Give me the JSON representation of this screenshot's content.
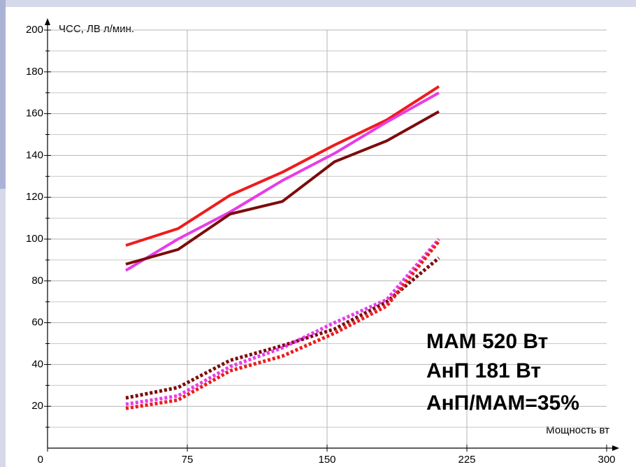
{
  "chart_data": {
    "type": "line",
    "ylabel": "ЧСС, ЛВ л/мин.",
    "xlabel": "Мощность вт",
    "annotations": [
      "МАМ 520 Вт",
      "АнП  181 Вт",
      "АнП/МАМ=35%"
    ],
    "annotation_colors": [
      "#2b2b9c",
      "#2b2b9c",
      "#ee1111"
    ],
    "x": [
      42,
      70,
      98,
      126,
      154,
      182,
      210
    ],
    "series": [
      {
        "color": "#ee1c1c",
        "style": "solid",
        "values": [
          97,
          105,
          121,
          132,
          145,
          157,
          173
        ]
      },
      {
        "color": "#e83ce8",
        "style": "solid",
        "values": [
          85,
          100,
          113,
          128,
          141,
          156,
          170
        ]
      },
      {
        "color": "#7c0c0c",
        "style": "solid",
        "values": [
          88,
          95,
          112,
          118,
          137,
          147,
          161
        ]
      },
      {
        "color": "#7c0c0c",
        "style": "dotted",
        "values": [
          24,
          29,
          42,
          49,
          57,
          70,
          91
        ]
      },
      {
        "color": "#e83ce8",
        "style": "dotted",
        "values": [
          21,
          25,
          39,
          48,
          60,
          71,
          100
        ]
      },
      {
        "color": "#ee1c1c",
        "style": "dotted",
        "values": [
          19,
          23,
          37,
          44,
          55,
          68,
          99
        ]
      }
    ],
    "xlim": [
      0,
      300
    ],
    "ylim": [
      0,
      200
    ],
    "xticks": [
      0,
      75,
      150,
      225,
      300
    ],
    "yticks": [
      20,
      40,
      60,
      80,
      100,
      120,
      140,
      160,
      180,
      200
    ],
    "yminorticks": [
      10,
      30,
      50,
      70,
      90,
      110,
      130,
      150,
      170,
      190
    ],
    "grid": true
  }
}
